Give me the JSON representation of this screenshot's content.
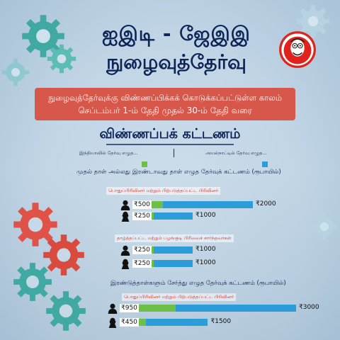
{
  "header": {
    "title_line1": "ஐஇடி - ஜேஇஇ",
    "title_line2": "நுழைவுத்தேர்வு"
  },
  "banner": {
    "line1": "நுழைவுத்தேர்வுக்கு விண்ணப்பிக்கக் கொடுக்கப்பட்டுள்ள காலம்",
    "line2": "செப்டம்பர் 1-ம் தேதி முதல் 30-ம் தேதி வரை"
  },
  "fees": {
    "heading": "விண்ணப்பக் கட்டணம்",
    "legend_india": "இந்தியாவில் தேர்வு எழுத...",
    "legend_abroad": "அயல்நாட்டில் தேர்வு எழுத...",
    "section1_title": "முதல் தாள் அல்லது இரண்டாவது தாள் எழுத தேர்வுக் கட்டணம் (ரூபாயில்)",
    "section2_title": "இரண்டுத்தாள்களும் சேர்த்து எழுத தேர்வுக் கட்டணம் (ரூபாயில்)",
    "groups": [
      {
        "category": "பொதுப்பிரிவினர் மற்றும் பிற்படுத்தப்பட்ட பிரிவினர்",
        "rows": [
          {
            "person": "male-icon",
            "india": 500,
            "india_label": "₹500",
            "abroad": 2000,
            "abroad_label": "₹2000"
          },
          {
            "person": "female-icon",
            "india": 250,
            "india_label": "₹250",
            "abroad": 1000,
            "abroad_label": "₹1000"
          }
        ]
      },
      {
        "category": "தாழ்த்தப்பட்ட மற்றும் பழங்குடி பிரிவைச் சார்ந்தவர்கள்",
        "rows": [
          {
            "person": "male-icon",
            "india": 250,
            "india_label": "₹250",
            "abroad": 1000,
            "abroad_label": "₹1000"
          },
          {
            "person": "female-icon",
            "india": 250,
            "india_label": "₹250",
            "abroad": 1000,
            "abroad_label": "₹1000"
          }
        ]
      },
      {
        "category": "பொதுப்பிரிவினர் மற்றும் பிற்படுத்தப்பட்ட பிரிவினர்",
        "rows": [
          {
            "person": "male-icon",
            "india": 950,
            "india_label": "₹950",
            "abroad": 3000,
            "abroad_label": "₹3000"
          },
          {
            "person": "female-icon",
            "india": 450,
            "india_label": "₹450",
            "abroad": 1500,
            "abroad_label": "₹1500"
          }
        ]
      }
    ]
  },
  "colors": {
    "india": "#6dbf45",
    "abroad": "#2c9dd8",
    "title": "#0d2456",
    "banner": "#d7574a",
    "category": "#d0302a"
  },
  "icons": [
    "gear-icon",
    "male-icon",
    "female-icon",
    "newspaper-logo"
  ]
}
